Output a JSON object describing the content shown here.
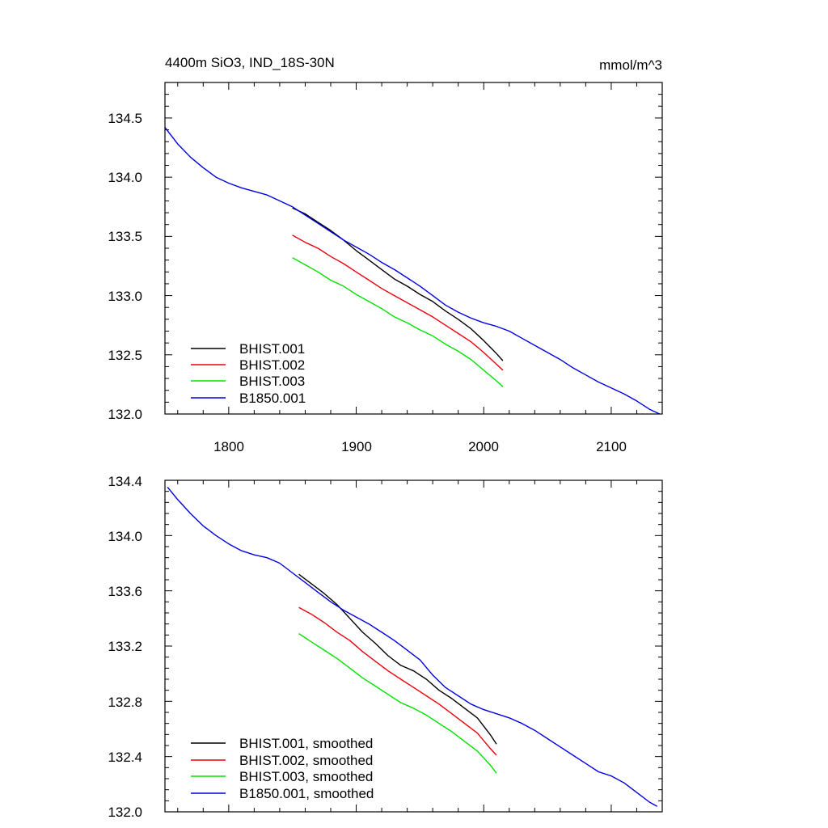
{
  "colors": {
    "BHIST.001": "#000000",
    "BHIST.002": "#e8000b",
    "BHIST.003": "#00e000",
    "B1850.001": "#0000e0"
  },
  "chart_data": [
    {
      "type": "line",
      "panel": "top",
      "title": "4400m SiO3, IND_18S-30N",
      "units": "mmol/m^3",
      "xlim": [
        1750,
        2140
      ],
      "ylim": [
        132.0,
        134.8
      ],
      "x_ticks": [
        1800,
        1900,
        2000,
        2100
      ],
      "x_tick_labels": [
        "1800",
        "1900",
        "2000",
        "2100"
      ],
      "y_ticks": [
        132.0,
        132.5,
        133.0,
        133.5,
        134.0,
        134.5
      ],
      "y_tick_labels": [
        "132.0",
        "132.5",
        "133.0",
        "133.5",
        "134.0",
        "134.5"
      ],
      "legend_position": "bottom-left",
      "series": [
        {
          "name": "BHIST.001",
          "points": [
            [
              1850,
              133.74
            ],
            [
              1860,
              133.69
            ],
            [
              1870,
              133.62
            ],
            [
              1880,
              133.55
            ],
            [
              1890,
              133.47
            ],
            [
              1900,
              133.38
            ],
            [
              1910,
              133.3
            ],
            [
              1920,
              133.22
            ],
            [
              1930,
              133.14
            ],
            [
              1940,
              133.08
            ],
            [
              1950,
              133.01
            ],
            [
              1960,
              132.95
            ],
            [
              1970,
              132.87
            ],
            [
              1980,
              132.8
            ],
            [
              1990,
              132.72
            ],
            [
              2000,
              132.62
            ],
            [
              2010,
              132.51
            ],
            [
              2015,
              132.45
            ]
          ]
        },
        {
          "name": "BHIST.002",
          "points": [
            [
              1850,
              133.51
            ],
            [
              1860,
              133.45
            ],
            [
              1870,
              133.4
            ],
            [
              1880,
              133.33
            ],
            [
              1890,
              133.27
            ],
            [
              1900,
              133.2
            ],
            [
              1910,
              133.13
            ],
            [
              1920,
              133.06
            ],
            [
              1930,
              133.0
            ],
            [
              1940,
              132.94
            ],
            [
              1950,
              132.88
            ],
            [
              1960,
              132.82
            ],
            [
              1970,
              132.75
            ],
            [
              1980,
              132.68
            ],
            [
              1990,
              132.61
            ],
            [
              2000,
              132.52
            ],
            [
              2010,
              132.42
            ],
            [
              2015,
              132.37
            ]
          ]
        },
        {
          "name": "BHIST.003",
          "points": [
            [
              1850,
              133.32
            ],
            [
              1860,
              133.26
            ],
            [
              1870,
              133.2
            ],
            [
              1880,
              133.13
            ],
            [
              1890,
              133.08
            ],
            [
              1900,
              133.01
            ],
            [
              1910,
              132.95
            ],
            [
              1920,
              132.89
            ],
            [
              1930,
              132.82
            ],
            [
              1940,
              132.77
            ],
            [
              1950,
              132.71
            ],
            [
              1960,
              132.66
            ],
            [
              1970,
              132.59
            ],
            [
              1980,
              132.53
            ],
            [
              1990,
              132.46
            ],
            [
              2000,
              132.37
            ],
            [
              2010,
              132.28
            ],
            [
              2015,
              132.23
            ]
          ]
        },
        {
          "name": "B1850.001",
          "points": [
            [
              1750,
              134.42
            ],
            [
              1760,
              134.28
            ],
            [
              1770,
              134.17
            ],
            [
              1780,
              134.08
            ],
            [
              1790,
              134.0
            ],
            [
              1800,
              133.95
            ],
            [
              1810,
              133.91
            ],
            [
              1820,
              133.88
            ],
            [
              1830,
              133.85
            ],
            [
              1840,
              133.8
            ],
            [
              1850,
              133.75
            ],
            [
              1860,
              133.68
            ],
            [
              1870,
              133.61
            ],
            [
              1880,
              133.54
            ],
            [
              1890,
              133.47
            ],
            [
              1900,
              133.41
            ],
            [
              1910,
              133.35
            ],
            [
              1920,
              133.28
            ],
            [
              1930,
              133.22
            ],
            [
              1940,
              133.15
            ],
            [
              1950,
              133.08
            ],
            [
              1960,
              133.0
            ],
            [
              1970,
              132.92
            ],
            [
              1980,
              132.86
            ],
            [
              1990,
              132.81
            ],
            [
              2000,
              132.77
            ],
            [
              2010,
              132.74
            ],
            [
              2020,
              132.7
            ],
            [
              2030,
              132.64
            ],
            [
              2040,
              132.58
            ],
            [
              2050,
              132.52
            ],
            [
              2060,
              132.46
            ],
            [
              2070,
              132.39
            ],
            [
              2080,
              132.33
            ],
            [
              2090,
              132.27
            ],
            [
              2100,
              132.22
            ],
            [
              2110,
              132.17
            ],
            [
              2120,
              132.11
            ],
            [
              2130,
              132.04
            ],
            [
              2138,
              132.0
            ]
          ]
        }
      ]
    },
    {
      "type": "line",
      "panel": "bottom",
      "xlim": [
        1750,
        2140
      ],
      "ylim": [
        132.0,
        134.4
      ],
      "x_ticks": [
        1800,
        1900,
        2000,
        2100
      ],
      "y_ticks": [
        132.0,
        132.4,
        132.8,
        133.2,
        133.6,
        134.0,
        134.4
      ],
      "y_tick_labels": [
        "132.0",
        "132.4",
        "132.8",
        "133.2",
        "133.6",
        "134.0",
        "134.4"
      ],
      "legend_position": "bottom-left",
      "series": [
        {
          "name": "BHIST.001, smoothed",
          "points": [
            [
              1855,
              133.72
            ],
            [
              1865,
              133.65
            ],
            [
              1875,
              133.58
            ],
            [
              1885,
              133.5
            ],
            [
              1895,
              133.4
            ],
            [
              1905,
              133.3
            ],
            [
              1915,
              133.22
            ],
            [
              1925,
              133.13
            ],
            [
              1935,
              133.06
            ],
            [
              1945,
              133.02
            ],
            [
              1955,
              132.96
            ],
            [
              1965,
              132.88
            ],
            [
              1975,
              132.82
            ],
            [
              1985,
              132.75
            ],
            [
              1995,
              132.68
            ],
            [
              2005,
              132.56
            ],
            [
              2010,
              132.49
            ]
          ]
        },
        {
          "name": "BHIST.002, smoothed",
          "points": [
            [
              1855,
              133.48
            ],
            [
              1865,
              133.43
            ],
            [
              1875,
              133.37
            ],
            [
              1885,
              133.3
            ],
            [
              1895,
              133.24
            ],
            [
              1905,
              133.16
            ],
            [
              1915,
              133.09
            ],
            [
              1925,
              133.02
            ],
            [
              1935,
              132.96
            ],
            [
              1945,
              132.9
            ],
            [
              1955,
              132.84
            ],
            [
              1965,
              132.78
            ],
            [
              1975,
              132.71
            ],
            [
              1985,
              132.64
            ],
            [
              1995,
              132.57
            ],
            [
              2005,
              132.46
            ],
            [
              2010,
              132.41
            ]
          ]
        },
        {
          "name": "BHIST.003, smoothed",
          "points": [
            [
              1855,
              133.29
            ],
            [
              1865,
              133.23
            ],
            [
              1875,
              133.17
            ],
            [
              1885,
              133.11
            ],
            [
              1895,
              133.04
            ],
            [
              1905,
              132.97
            ],
            [
              1915,
              132.91
            ],
            [
              1925,
              132.85
            ],
            [
              1935,
              132.79
            ],
            [
              1945,
              132.75
            ],
            [
              1955,
              132.7
            ],
            [
              1965,
              132.64
            ],
            [
              1975,
              132.58
            ],
            [
              1985,
              132.51
            ],
            [
              1995,
              132.44
            ],
            [
              2005,
              132.34
            ],
            [
              2010,
              132.28
            ]
          ]
        },
        {
          "name": "B1850.001, smoothed",
          "points": [
            [
              1752,
              134.35
            ],
            [
              1760,
              134.26
            ],
            [
              1770,
              134.16
            ],
            [
              1780,
              134.07
            ],
            [
              1790,
              134.0
            ],
            [
              1800,
              133.94
            ],
            [
              1810,
              133.89
            ],
            [
              1820,
              133.86
            ],
            [
              1830,
              133.84
            ],
            [
              1840,
              133.8
            ],
            [
              1850,
              133.73
            ],
            [
              1860,
              133.66
            ],
            [
              1870,
              133.59
            ],
            [
              1880,
              133.52
            ],
            [
              1890,
              133.46
            ],
            [
              1900,
              133.41
            ],
            [
              1910,
              133.36
            ],
            [
              1920,
              133.3
            ],
            [
              1930,
              133.24
            ],
            [
              1940,
              133.17
            ],
            [
              1950,
              133.1
            ],
            [
              1960,
              132.99
            ],
            [
              1970,
              132.9
            ],
            [
              1980,
              132.84
            ],
            [
              1990,
              132.78
            ],
            [
              2000,
              132.74
            ],
            [
              2010,
              132.71
            ],
            [
              2020,
              132.68
            ],
            [
              2030,
              132.64
            ],
            [
              2040,
              132.59
            ],
            [
              2050,
              132.53
            ],
            [
              2060,
              132.47
            ],
            [
              2070,
              132.41
            ],
            [
              2080,
              132.35
            ],
            [
              2090,
              132.29
            ],
            [
              2100,
              132.26
            ],
            [
              2110,
              132.21
            ],
            [
              2120,
              132.14
            ],
            [
              2130,
              132.07
            ],
            [
              2136,
              132.04
            ]
          ]
        }
      ]
    }
  ]
}
